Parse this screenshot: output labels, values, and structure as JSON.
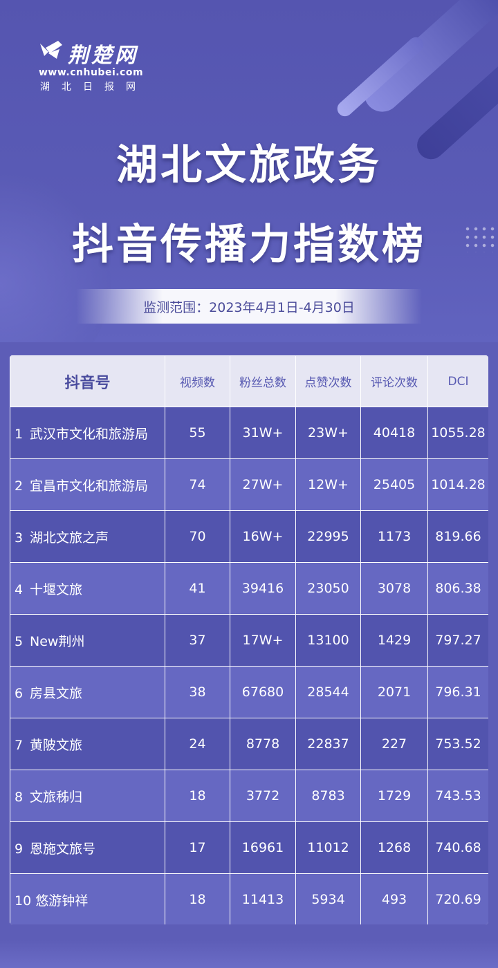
{
  "brand": {
    "name": "荆楚网",
    "url": "www.cnhubei.com",
    "paper": "湖北日报网"
  },
  "title": {
    "line1": "湖北文旅政务",
    "line2": "抖音传播力指数榜"
  },
  "monitor_range": "监测范围：2023年4月1日-4月30日",
  "table": {
    "headers": [
      "抖音号",
      "视频数",
      "粉丝总数",
      "点赞次数",
      "评论次数",
      "DCI"
    ],
    "rows": [
      {
        "rank": "1",
        "name": "武汉市文化和旅游局",
        "videos": "55",
        "fans": "31W+",
        "likes": "23W+",
        "comments": "40418",
        "dci": "1055.28"
      },
      {
        "rank": "2",
        "name": "宜昌市文化和旅游局",
        "videos": "74",
        "fans": "27W+",
        "likes": "12W+",
        "comments": "25405",
        "dci": "1014.28"
      },
      {
        "rank": "3",
        "name": "湖北文旅之声",
        "videos": "70",
        "fans": "16W+",
        "likes": "22995",
        "comments": "1173",
        "dci": "819.66"
      },
      {
        "rank": "4",
        "name": "十堰文旅",
        "videos": "41",
        "fans": "39416",
        "likes": "23050",
        "comments": "3078",
        "dci": "806.38"
      },
      {
        "rank": "5",
        "name": "New荆州",
        "videos": "37",
        "fans": "17W+",
        "likes": "13100",
        "comments": "1429",
        "dci": "797.27"
      },
      {
        "rank": "6",
        "name": "房县文旅",
        "videos": "38",
        "fans": "67680",
        "likes": "28544",
        "comments": "2071",
        "dci": "796.31"
      },
      {
        "rank": "7",
        "name": "黄陂文旅",
        "videos": "24",
        "fans": "8778",
        "likes": "22837",
        "comments": "227",
        "dci": "753.52"
      },
      {
        "rank": "8",
        "name": "文旅秭归",
        "videos": "18",
        "fans": "3772",
        "likes": "8783",
        "comments": "1729",
        "dci": "743.53"
      },
      {
        "rank": "9",
        "name": "恩施文旅号",
        "videos": "17",
        "fans": "16961",
        "likes": "11012",
        "comments": "1268",
        "dci": "740.68"
      },
      {
        "rank": "10",
        "name": "悠游钟祥",
        "videos": "18",
        "fans": "11413",
        "likes": "5934",
        "comments": "493",
        "dci": "720.69"
      }
    ]
  }
}
